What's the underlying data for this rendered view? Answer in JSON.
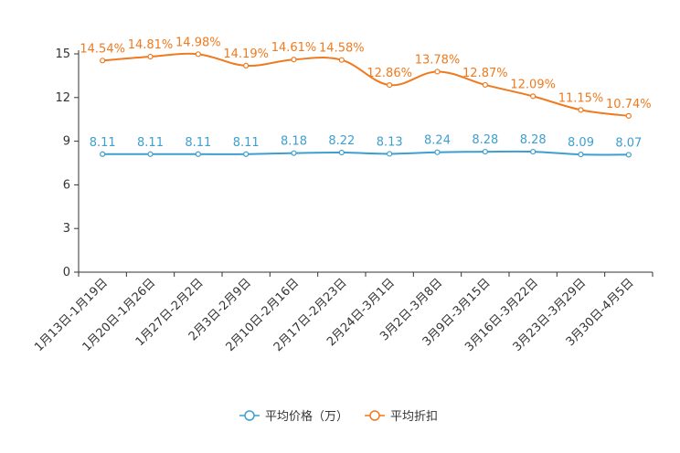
{
  "chart_data": {
    "type": "line",
    "categories": [
      "1月13日-1月19日",
      "1月20日-1月26日",
      "1月27日-2月2日",
      "2月3日-2月9日",
      "2月10日-2月16日",
      "2月17日-2月23日",
      "2月24日-3月1日",
      "3月2日-3月8日",
      "3月9日-3月15日",
      "3月16日-3月22日",
      "3月23日-3月29日",
      "3月30日-4月5日"
    ],
    "ylim": [
      0,
      15
    ],
    "yticks": [
      "0",
      "3",
      "6",
      "9",
      "12",
      "15"
    ],
    "series": [
      {
        "name": "平均价格（万）",
        "color": "#3e9fcf",
        "values": [
          8.11,
          8.11,
          8.11,
          8.11,
          8.18,
          8.22,
          8.13,
          8.24,
          8.28,
          8.28,
          8.09,
          8.07
        ],
        "labels": [
          "8.11",
          "8.11",
          "8.11",
          "8.11",
          "8.18",
          "8.22",
          "8.13",
          "8.24",
          "8.28",
          "8.28",
          "8.09",
          "8.07"
        ]
      },
      {
        "name": "平均折扣",
        "color": "#ef7a1f",
        "values": [
          14.54,
          14.81,
          14.98,
          14.19,
          14.61,
          14.58,
          12.86,
          13.78,
          12.87,
          12.09,
          11.15,
          10.74
        ],
        "labels": [
          "14.54%",
          "14.81%",
          "14.98%",
          "14.19%",
          "14.61%",
          "14.58%",
          "12.86%",
          "13.78%",
          "12.87%",
          "12.09%",
          "11.15%",
          "10.74%"
        ]
      }
    ],
    "legend": "bottom-center"
  }
}
